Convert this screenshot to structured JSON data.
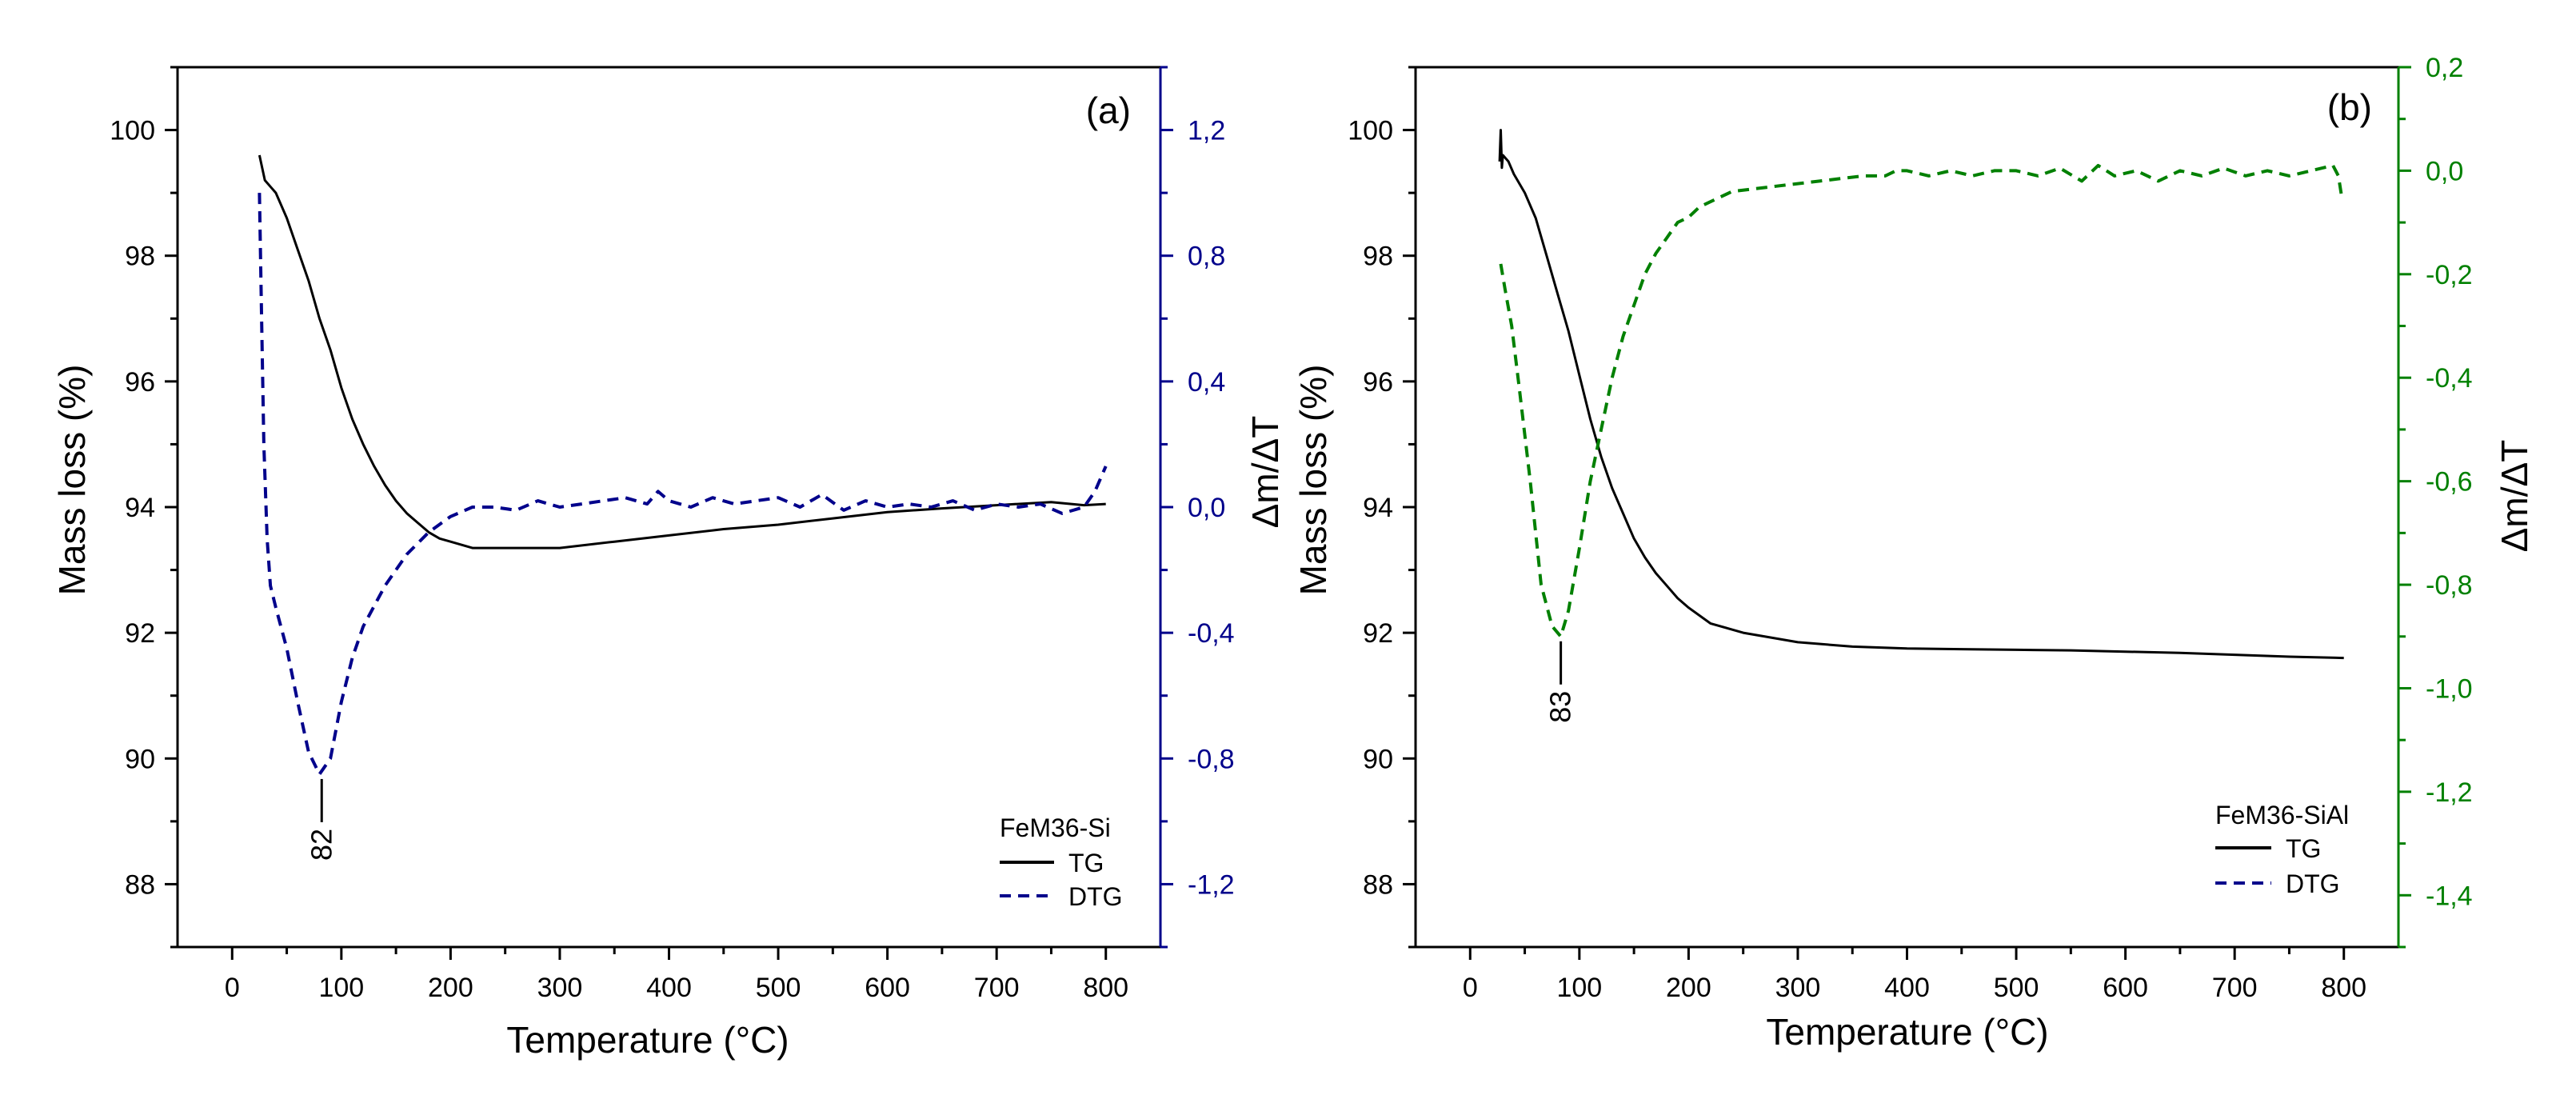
{
  "chart_data": [
    {
      "type": "line",
      "panel_label": "(a)",
      "xlabel": "Temperature (°C)",
      "ylabel": "Mass loss (%)",
      "y2label": "Δm/ΔT",
      "xlim": [
        -50,
        850
      ],
      "ylim": [
        87,
        101
      ],
      "y2lim": [
        -1.4,
        1.4
      ],
      "x_ticks": [
        0,
        100,
        200,
        300,
        400,
        500,
        600,
        700,
        800
      ],
      "y_ticks": [
        88,
        90,
        92,
        94,
        96,
        98,
        100
      ],
      "y2_ticks": [
        -1.2,
        -0.8,
        -0.4,
        0.0,
        0.4,
        0.8,
        1.2
      ],
      "x_tick_labels": [
        "0",
        "100",
        "200",
        "300",
        "400",
        "500",
        "600",
        "700",
        "800"
      ],
      "y_tick_labels": [
        "88",
        "90",
        "92",
        "94",
        "96",
        "98",
        "100"
      ],
      "y2_tick_labels": [
        "-1,2",
        "-0,8",
        "-0,4",
        "0,0",
        "0,4",
        "0,8",
        "1,2"
      ],
      "y2_color": "#00008b",
      "legend": {
        "title": "FeM36-Si",
        "entries": [
          "TG",
          "DTG"
        ],
        "placement": "bottom-right"
      },
      "annotation": {
        "text": "82",
        "x": 82
      },
      "series": [
        {
          "name": "TG",
          "axis": "left",
          "style": "solid",
          "color": "#000000",
          "x": [
            25,
            30,
            35,
            40,
            50,
            60,
            70,
            80,
            90,
            100,
            110,
            120,
            130,
            140,
            150,
            160,
            170,
            180,
            190,
            200,
            220,
            250,
            300,
            350,
            400,
            450,
            500,
            550,
            600,
            650,
            700,
            750,
            780,
            800
          ],
          "y": [
            99.6,
            99.2,
            99.1,
            99.0,
            98.6,
            98.1,
            97.6,
            97.0,
            96.5,
            95.9,
            95.4,
            95.0,
            94.65,
            94.35,
            94.1,
            93.9,
            93.75,
            93.6,
            93.5,
            93.45,
            93.35,
            93.35,
            93.35,
            93.45,
            93.55,
            93.65,
            93.72,
            93.82,
            93.92,
            93.98,
            94.03,
            94.08,
            94.03,
            94.05
          ]
        },
        {
          "name": "DTG",
          "axis": "right",
          "style": "dashed",
          "color": "#00008b",
          "x": [
            25,
            27,
            29,
            32,
            35,
            40,
            50,
            60,
            70,
            80,
            90,
            100,
            110,
            120,
            140,
            160,
            180,
            200,
            220,
            240,
            260,
            280,
            300,
            320,
            340,
            360,
            380,
            390,
            400,
            420,
            440,
            460,
            480,
            500,
            520,
            540,
            560,
            580,
            600,
            620,
            640,
            660,
            680,
            700,
            720,
            740,
            760,
            780,
            790,
            800
          ],
          "y": [
            1.0,
            0.6,
            0.2,
            -0.1,
            -0.25,
            -0.32,
            -0.45,
            -0.62,
            -0.78,
            -0.85,
            -0.8,
            -0.62,
            -0.48,
            -0.38,
            -0.25,
            -0.15,
            -0.08,
            -0.03,
            0.0,
            0.0,
            -0.01,
            0.02,
            0.0,
            0.01,
            0.02,
            0.03,
            0.01,
            0.05,
            0.02,
            0.0,
            0.03,
            0.01,
            0.02,
            0.03,
            0.0,
            0.04,
            -0.01,
            0.02,
            0.0,
            0.01,
            0.0,
            0.02,
            -0.01,
            0.01,
            0.0,
            0.01,
            -0.02,
            0.0,
            0.05,
            0.13
          ]
        }
      ]
    },
    {
      "type": "line",
      "panel_label": "(b)",
      "xlabel": "Temperature (°C)",
      "ylabel": "Mass loss (%)",
      "y2label": "Δm/ΔT",
      "xlim": [
        -50,
        850
      ],
      "ylim": [
        87,
        101
      ],
      "y2lim": [
        -1.5,
        0.2
      ],
      "x_ticks": [
        0,
        100,
        200,
        300,
        400,
        500,
        600,
        700,
        800
      ],
      "y_ticks": [
        88,
        90,
        92,
        94,
        96,
        98,
        100
      ],
      "y2_ticks": [
        -1.4,
        -1.2,
        -1.0,
        -0.8,
        -0.6,
        -0.4,
        -0.2,
        0.0,
        0.2
      ],
      "x_tick_labels": [
        "0",
        "100",
        "200",
        "300",
        "400",
        "500",
        "600",
        "700",
        "800"
      ],
      "y_tick_labels": [
        "88",
        "90",
        "92",
        "94",
        "96",
        "98",
        "100"
      ],
      "y2_tick_labels": [
        "-1,4",
        "-1,2",
        "-1,0",
        "-0,8",
        "-0,6",
        "-0,4",
        "-0,2",
        "0,0",
        "0,2"
      ],
      "y2_color": "#008000",
      "legend": {
        "title": "FeM36-SiAl",
        "entries": [
          "TG",
          "DTG"
        ],
        "placement": "bottom-right"
      },
      "annotation": {
        "text": "83",
        "x": 83
      },
      "series": [
        {
          "name": "TG",
          "axis": "left",
          "style": "solid",
          "color": "#000000",
          "x": [
            27,
            28,
            29,
            30,
            35,
            40,
            50,
            60,
            70,
            80,
            90,
            100,
            110,
            120,
            130,
            140,
            150,
            160,
            170,
            180,
            190,
            200,
            220,
            250,
            300,
            350,
            400,
            450,
            500,
            550,
            600,
            650,
            700,
            750,
            800
          ],
          "y": [
            99.5,
            100.0,
            99.4,
            99.6,
            99.5,
            99.3,
            99.0,
            98.6,
            98.0,
            97.4,
            96.8,
            96.1,
            95.4,
            94.8,
            94.3,
            93.9,
            93.5,
            93.2,
            92.95,
            92.75,
            92.55,
            92.4,
            92.15,
            92.0,
            91.85,
            91.78,
            91.75,
            91.74,
            91.73,
            91.72,
            91.7,
            91.68,
            91.65,
            91.62,
            91.6
          ]
        },
        {
          "name": "DTG",
          "axis": "right",
          "style": "dashed",
          "color": "#008000",
          "x": [
            28,
            32,
            38,
            45,
            55,
            65,
            75,
            83,
            90,
            100,
            110,
            120,
            130,
            140,
            150,
            160,
            170,
            180,
            190,
            200,
            210,
            220,
            240,
            260,
            280,
            300,
            320,
            340,
            360,
            380,
            390,
            400,
            420,
            440,
            460,
            480,
            500,
            520,
            540,
            560,
            575,
            590,
            610,
            630,
            650,
            670,
            690,
            710,
            730,
            750,
            770,
            790,
            795,
            798
          ],
          "y": [
            -0.18,
            -0.23,
            -0.3,
            -0.42,
            -0.6,
            -0.8,
            -0.88,
            -0.9,
            -0.85,
            -0.73,
            -0.6,
            -0.5,
            -0.4,
            -0.32,
            -0.26,
            -0.2,
            -0.16,
            -0.13,
            -0.1,
            -0.09,
            -0.07,
            -0.06,
            -0.04,
            -0.035,
            -0.03,
            -0.025,
            -0.02,
            -0.015,
            -0.01,
            -0.01,
            0.0,
            0.0,
            -0.01,
            0.0,
            -0.01,
            0.0,
            0.0,
            -0.01,
            0.005,
            -0.02,
            0.01,
            -0.01,
            0.0,
            -0.02,
            0.0,
            -0.01,
            0.005,
            -0.01,
            0.0,
            -0.01,
            0.0,
            0.01,
            -0.01,
            -0.05
          ]
        }
      ]
    }
  ]
}
